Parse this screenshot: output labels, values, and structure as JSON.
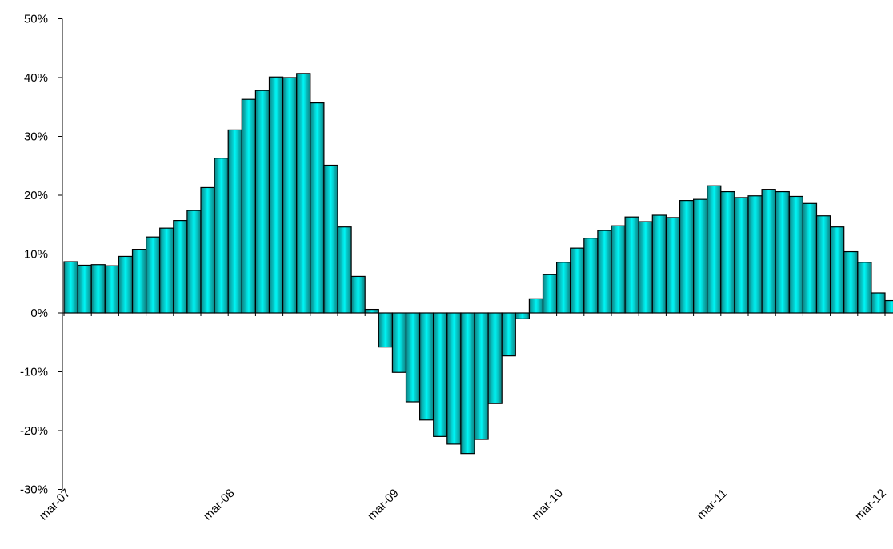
{
  "chart_data": {
    "type": "bar",
    "title": "",
    "xlabel": "",
    "ylabel": "",
    "ylim": [
      -30,
      50
    ],
    "y_unit": "%",
    "y_ticks": [
      -30,
      -20,
      -10,
      0,
      10,
      20,
      30,
      40,
      50
    ],
    "y_tick_labels": [
      "-30%",
      "-20%",
      "-10%",
      "0%",
      "10%",
      "20%",
      "30%",
      "40%",
      "50%"
    ],
    "x_tick_labels": [
      "mar-07",
      "mar-08",
      "mar-09",
      "mar-10",
      "mar-11",
      "mar-12"
    ],
    "x_tick_positions": [
      0,
      12,
      24,
      36,
      48,
      60
    ],
    "grid": false,
    "legend": "none",
    "colors": {
      "bar_edge": "#000000",
      "bar_dark": "#0f7f80",
      "bar_light": "#00f5f5"
    },
    "categories": [
      "mar-07",
      "apr-07",
      "may-07",
      "jun-07",
      "jul-07",
      "aug-07",
      "sep-07",
      "oct-07",
      "nov-07",
      "dec-07",
      "jan-08",
      "feb-08",
      "mar-08",
      "apr-08",
      "may-08",
      "jun-08",
      "jul-08",
      "aug-08",
      "sep-08",
      "oct-08",
      "nov-08",
      "dec-08",
      "jan-09",
      "feb-09",
      "mar-09",
      "apr-09",
      "may-09",
      "jun-09",
      "jul-09",
      "aug-09",
      "sep-09",
      "oct-09",
      "nov-09",
      "dec-09",
      "jan-10",
      "feb-10",
      "mar-10",
      "apr-10",
      "may-10",
      "jun-10",
      "jul-10",
      "aug-10",
      "sep-10",
      "oct-10",
      "nov-10",
      "dec-10",
      "jan-11",
      "feb-11",
      "mar-11",
      "apr-11",
      "may-11",
      "jun-11",
      "jul-11",
      "aug-11",
      "sep-11",
      "oct-11",
      "nov-11",
      "dec-11",
      "jan-12",
      "feb-12",
      "mar-12"
    ],
    "values": [
      8.7,
      8.1,
      8.2,
      8.0,
      9.6,
      10.8,
      12.9,
      14.4,
      15.7,
      17.4,
      21.3,
      26.3,
      31.1,
      36.3,
      37.8,
      40.1,
      40.0,
      40.7,
      35.7,
      25.1,
      14.6,
      6.2,
      0.6,
      -5.8,
      -10.1,
      -15.1,
      -18.2,
      -21.0,
      -22.3,
      -23.9,
      -21.5,
      -15.4,
      -7.3,
      -1.0,
      2.4,
      6.5,
      8.6,
      11.0,
      12.7,
      14.0,
      14.8,
      16.3,
      15.5,
      16.6,
      16.2,
      19.1,
      19.3,
      21.6,
      20.6,
      19.6,
      19.9,
      21.0,
      20.6,
      19.8,
      18.6,
      16.5,
      14.6,
      10.4,
      8.6,
      3.4,
      2.1
    ]
  }
}
